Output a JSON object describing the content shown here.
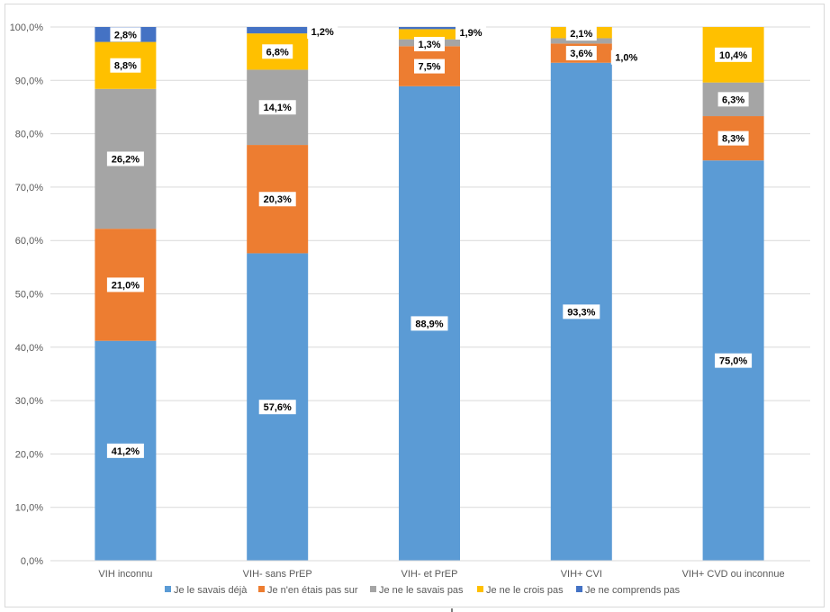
{
  "chart_data": {
    "type": "bar",
    "stacked": true,
    "categories": [
      "VIH inconnu",
      "VIH- sans PrEP",
      "VIH- et PrEP",
      "VIH+ CVI",
      "VIH+ CVD ou inconnue"
    ],
    "ylim": [
      0,
      100
    ],
    "yticks": [
      "0,0%",
      "10,0%",
      "20,0%",
      "30,0%",
      "40,0%",
      "50,0%",
      "60,0%",
      "70,0%",
      "80,0%",
      "90,0%",
      "100,0%"
    ],
    "grid": true,
    "legend_position": "bottom",
    "series": [
      {
        "name": "Je le savais déjà",
        "color": "#5b9bd5",
        "values": [
          41.2,
          57.6,
          88.9,
          93.3,
          75.0
        ],
        "labels": [
          "41,2%",
          "57,6%",
          "88,9%",
          "93,3%",
          "75,0%"
        ]
      },
      {
        "name": "Je n'en étais pas sur",
        "color": "#ed7d31",
        "values": [
          21.0,
          20.3,
          7.5,
          3.6,
          8.3
        ],
        "labels": [
          "21,0%",
          "20,3%",
          "7,5%",
          "3,6%",
          "8,3%"
        ]
      },
      {
        "name": "Je ne le savais pas",
        "color": "#a5a5a5",
        "values": [
          26.2,
          14.1,
          1.3,
          1.0,
          6.3
        ],
        "labels": [
          "26,2%",
          "14,1%",
          "1,3%",
          "1,0%",
          "6,3%"
        ]
      },
      {
        "name": "Je ne le crois pas",
        "color": "#ffc000",
        "values": [
          8.8,
          6.8,
          1.9,
          2.1,
          10.4
        ],
        "labels": [
          "8,8%",
          "6,8%",
          "1,9%",
          "2,1%",
          "10,4%"
        ]
      },
      {
        "name": "Je ne comprends pas",
        "color": "#4472c4",
        "values": [
          2.8,
          1.2,
          0.4,
          0,
          0
        ],
        "labels": [
          "2,8%",
          "1,2%",
          null,
          null,
          null
        ]
      }
    ]
  }
}
